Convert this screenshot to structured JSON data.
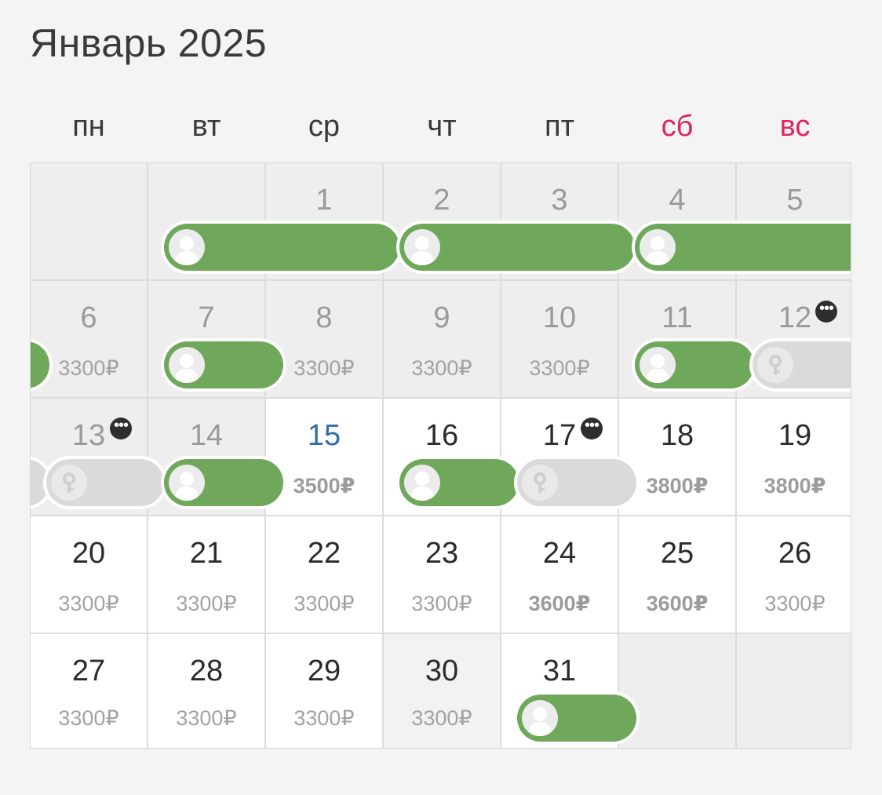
{
  "calendar": {
    "title": "Январь 2025",
    "weekdays": [
      "пн",
      "вт",
      "ср",
      "чт",
      "пт",
      "сб",
      "вс"
    ],
    "weekend_color": "#e0245e",
    "today_color": "#2f6ea8",
    "booked_color": "#6fa85a",
    "blocked_color": "#dadada",
    "currency": "₽",
    "days": {
      "d1": "1",
      "d2": "2",
      "d3": "3",
      "d4": "4",
      "d5": "5",
      "d6": "6",
      "d7": "7",
      "d8": "8",
      "d9": "9",
      "d10": "10",
      "d11": "11",
      "d12": "12",
      "d13": "13",
      "d14": "14",
      "d15": "15",
      "d16": "16",
      "d17": "17",
      "d18": "18",
      "d19": "19",
      "d20": "20",
      "d21": "21",
      "d22": "22",
      "d23": "23",
      "d24": "24",
      "d25": "25",
      "d26": "26",
      "d27": "27",
      "d28": "28",
      "d29": "29",
      "d30": "30",
      "d31": "31"
    },
    "prices": {
      "d6": "3300₽",
      "d8": "3300₽",
      "d9": "3300₽",
      "d10": "3300₽",
      "d15": "3500₽",
      "d18": "3800₽",
      "d19": "3800₽",
      "d20": "3300₽",
      "d21": "3300₽",
      "d22": "3300₽",
      "d23": "3300₽",
      "d24": "3600₽",
      "d25": "3600₽",
      "d26": "3300₽",
      "d27": "3300₽",
      "d28": "3300₽",
      "d29": "3300₽",
      "d30": "3300₽"
    },
    "more_icon": "more-horizontal-icon",
    "more_glyph": "•••"
  }
}
